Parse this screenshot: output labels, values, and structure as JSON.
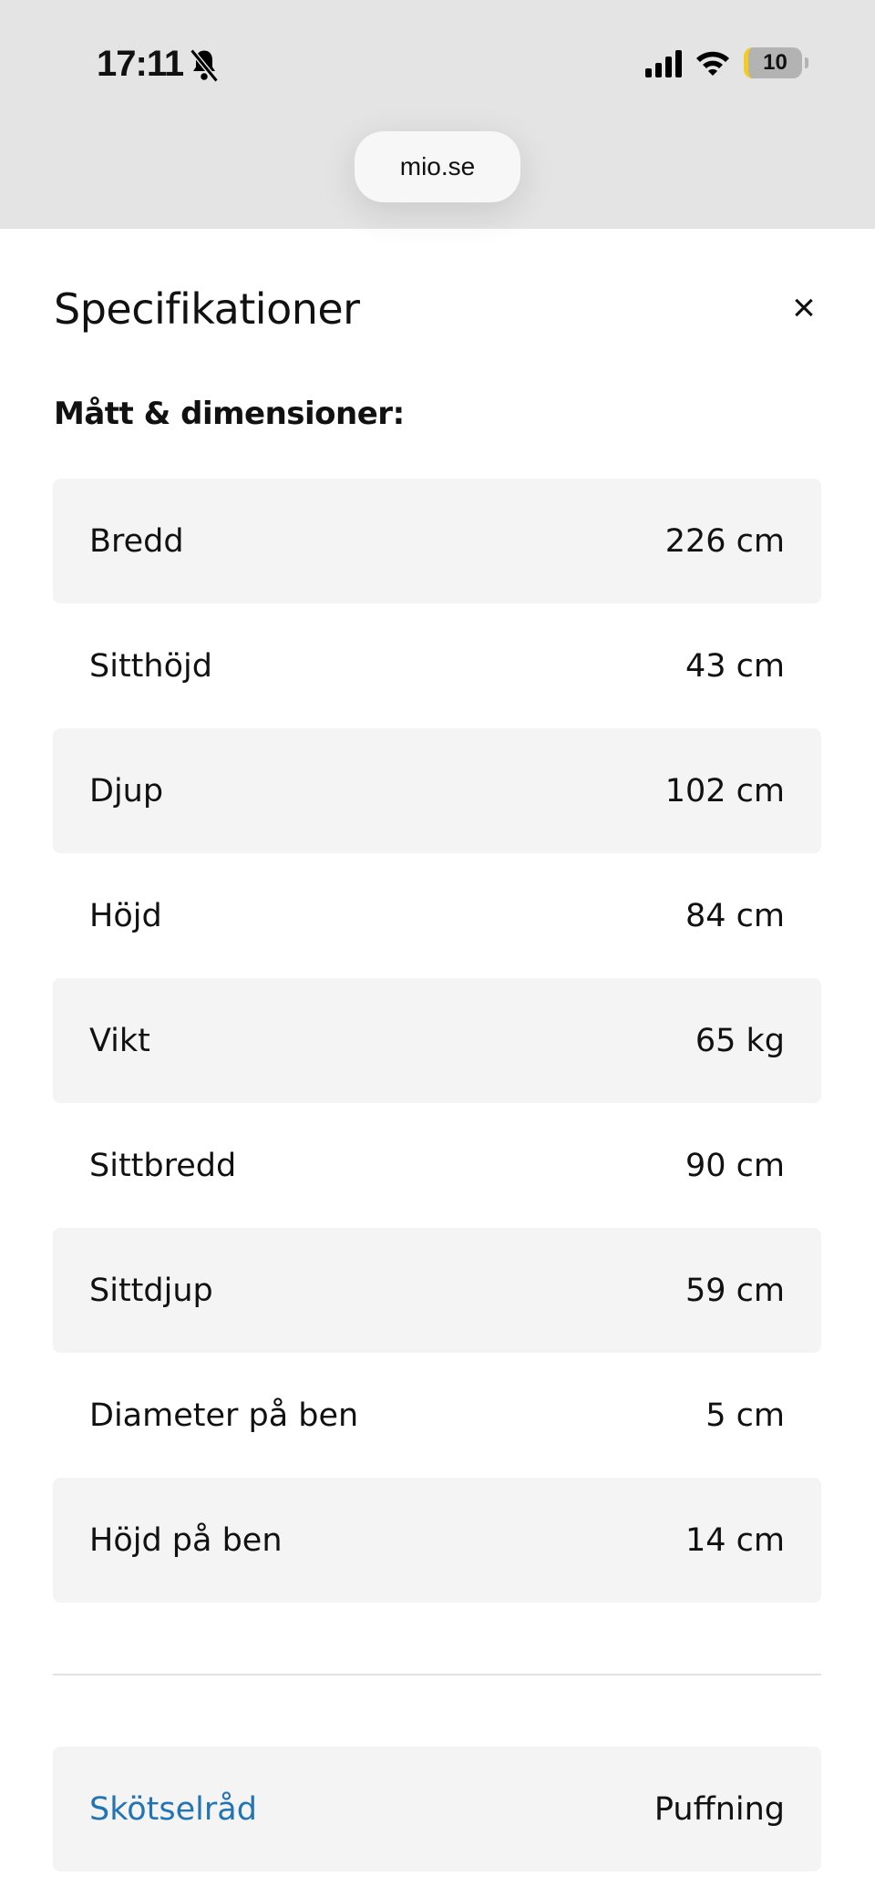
{
  "status_bar": {
    "time": "17:11",
    "battery": "10",
    "battery_accent": "#f5cc1c"
  },
  "browser": {
    "url": "mio.se"
  },
  "sheet": {
    "title": "Specifikationer",
    "section_title": "Mått & dimensioner:",
    "rows": [
      {
        "label": "Bredd",
        "value": "226 cm"
      },
      {
        "label": "Sitthöjd",
        "value": "43 cm"
      },
      {
        "label": "Djup",
        "value": "102 cm"
      },
      {
        "label": "Höjd",
        "value": "84 cm"
      },
      {
        "label": "Vikt",
        "value": "65 kg"
      },
      {
        "label": "Sittbredd",
        "value": "90 cm"
      },
      {
        "label": "Sittdjup",
        "value": "59 cm"
      },
      {
        "label": "Diameter på ben",
        "value": "5 cm"
      },
      {
        "label": "Höjd på ben",
        "value": "14 cm"
      }
    ],
    "care": {
      "label": "Skötselråd",
      "value": "Puffning",
      "link_color": "#2274b5"
    }
  }
}
